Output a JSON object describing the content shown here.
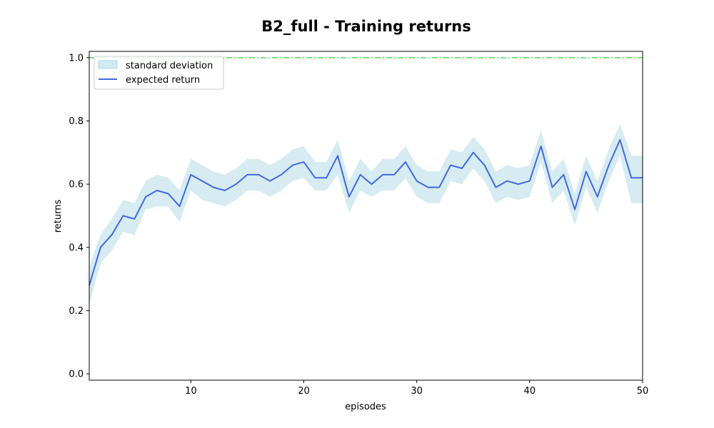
{
  "chart_data": {
    "type": "line",
    "title": "B2_full - Training returns",
    "xlabel": "episodes",
    "ylabel": "returns",
    "xlim": [
      1,
      50
    ],
    "ylim": [
      -0.02,
      1.02
    ],
    "xticks": [
      10,
      20,
      30,
      40,
      50
    ],
    "yticks": [
      0.0,
      0.2,
      0.4,
      0.6,
      0.8,
      1.0
    ],
    "ytick_labels": [
      "0.0",
      "0.2",
      "0.4",
      "0.6",
      "0.8",
      "1.0"
    ],
    "grid": false,
    "legend_position": "top-left",
    "x": [
      1,
      2,
      3,
      4,
      5,
      6,
      7,
      8,
      9,
      10,
      11,
      12,
      13,
      14,
      15,
      16,
      17,
      18,
      19,
      20,
      21,
      22,
      23,
      24,
      25,
      26,
      27,
      28,
      29,
      30,
      31,
      32,
      33,
      34,
      35,
      36,
      37,
      38,
      39,
      40,
      41,
      42,
      43,
      44,
      45,
      46,
      47,
      48,
      49,
      50
    ],
    "series": [
      {
        "name": "expected return",
        "color": "#4169e1",
        "values": [
          0.28,
          0.4,
          0.44,
          0.5,
          0.49,
          0.56,
          0.58,
          0.57,
          0.53,
          0.63,
          0.61,
          0.59,
          0.58,
          0.6,
          0.63,
          0.63,
          0.61,
          0.63,
          0.66,
          0.67,
          0.62,
          0.62,
          0.69,
          0.56,
          0.63,
          0.6,
          0.63,
          0.63,
          0.67,
          0.61,
          0.59,
          0.59,
          0.66,
          0.65,
          0.7,
          0.66,
          0.59,
          0.61,
          0.6,
          0.61,
          0.72,
          0.59,
          0.63,
          0.52,
          0.64,
          0.56,
          0.66,
          0.74,
          0.62,
          0.62
        ]
      },
      {
        "name": "standard deviation",
        "color": "#add8e6",
        "lower": [
          0.22,
          0.35,
          0.39,
          0.45,
          0.44,
          0.52,
          0.53,
          0.53,
          0.48,
          0.58,
          0.55,
          0.54,
          0.53,
          0.55,
          0.58,
          0.58,
          0.56,
          0.58,
          0.61,
          0.62,
          0.58,
          0.58,
          0.63,
          0.51,
          0.58,
          0.56,
          0.58,
          0.58,
          0.62,
          0.56,
          0.54,
          0.54,
          0.61,
          0.6,
          0.65,
          0.61,
          0.54,
          0.56,
          0.55,
          0.56,
          0.67,
          0.54,
          0.58,
          0.47,
          0.59,
          0.51,
          0.61,
          0.69,
          0.54,
          0.54
        ],
        "upper": [
          0.34,
          0.44,
          0.49,
          0.55,
          0.54,
          0.61,
          0.63,
          0.62,
          0.58,
          0.68,
          0.66,
          0.64,
          0.63,
          0.65,
          0.68,
          0.68,
          0.66,
          0.68,
          0.71,
          0.72,
          0.67,
          0.67,
          0.74,
          0.61,
          0.68,
          0.64,
          0.68,
          0.68,
          0.72,
          0.66,
          0.64,
          0.64,
          0.71,
          0.7,
          0.75,
          0.71,
          0.64,
          0.66,
          0.65,
          0.66,
          0.77,
          0.64,
          0.68,
          0.57,
          0.69,
          0.61,
          0.71,
          0.79,
          0.69,
          0.69
        ]
      }
    ],
    "reference_line": {
      "y": 1.0,
      "color": "#32cd32",
      "style": "dash-dot"
    }
  }
}
